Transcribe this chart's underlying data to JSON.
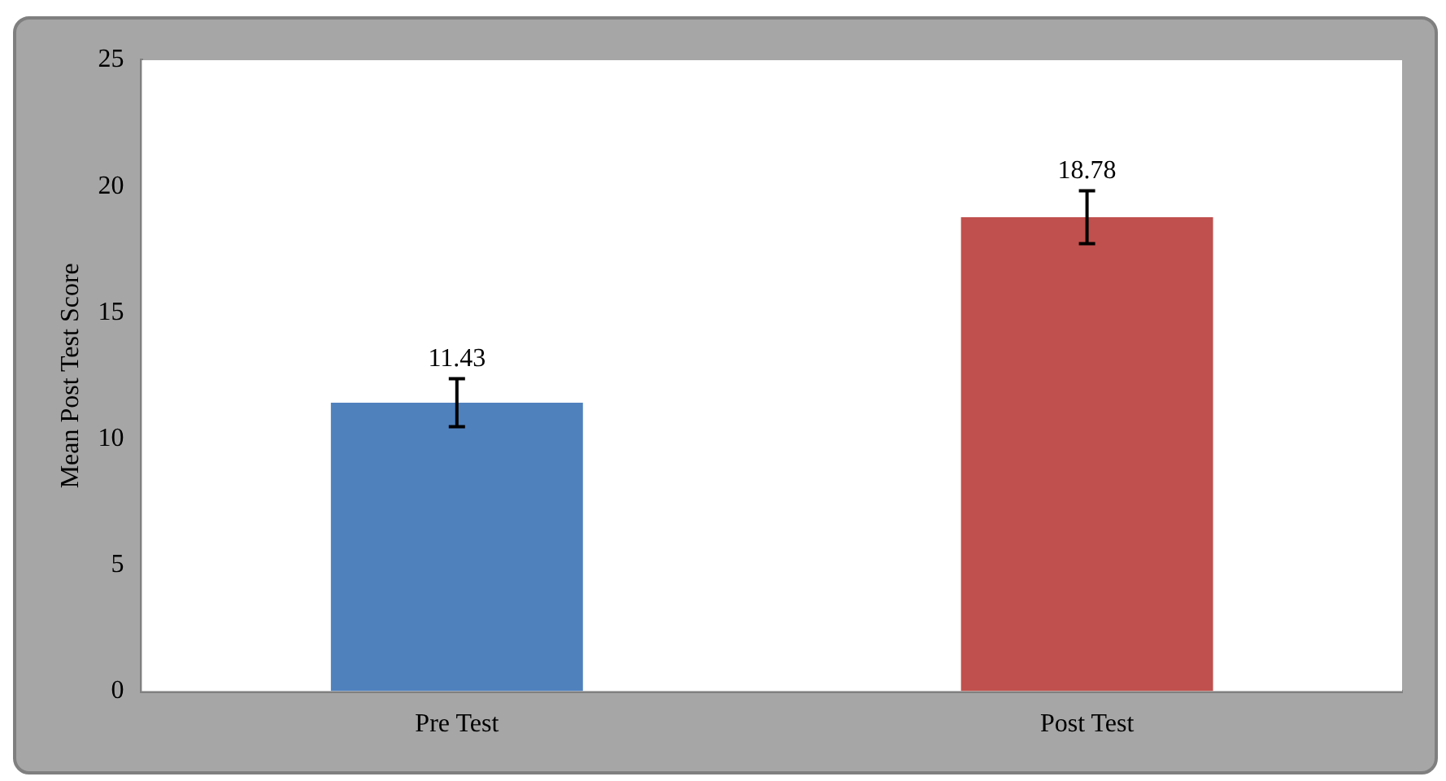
{
  "chart_data": {
    "type": "bar",
    "ylabel": "Mean Post Test Score",
    "categories": [
      "Pre Test",
      "Post Test"
    ],
    "values": [
      11.43,
      18.78
    ],
    "colors": [
      "#4f81bd",
      "#c0504d"
    ],
    "errors": [
      0.95,
      1.05
    ],
    "ylim": [
      0,
      25
    ],
    "yticks": [
      0,
      5,
      10,
      15,
      20,
      25
    ],
    "data_labels": true,
    "grid": false,
    "legend": false
  }
}
